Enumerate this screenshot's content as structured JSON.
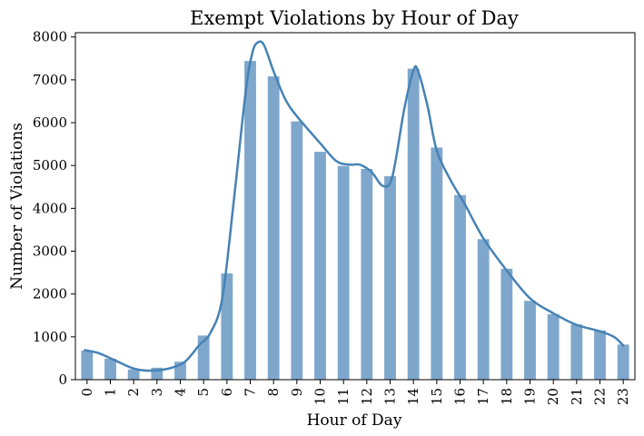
{
  "chart_data": {
    "type": "bar",
    "title": "Exempt Violations by Hour of Day",
    "xlabel": "Hour of Day",
    "ylabel": "Number of Violations",
    "categories": [
      "0",
      "1",
      "2",
      "3",
      "4",
      "5",
      "6",
      "7",
      "8",
      "9",
      "10",
      "11",
      "12",
      "13",
      "14",
      "15",
      "16",
      "17",
      "18",
      "19",
      "20",
      "21",
      "22",
      "23"
    ],
    "values": [
      680,
      490,
      240,
      280,
      420,
      1030,
      2480,
      7440,
      7080,
      6030,
      5320,
      4990,
      4920,
      4750,
      7260,
      5420,
      4310,
      3280,
      2590,
      1840,
      1530,
      1290,
      1150,
      820
    ],
    "ylim": [
      0,
      8100
    ],
    "yticks": [
      0,
      1000,
      2000,
      3000,
      4000,
      5000,
      6000,
      7000,
      8000
    ],
    "grid": false,
    "legend": "none",
    "overlay": {
      "type": "density-curve",
      "points": [
        {
          "x": -0.1,
          "y": 690
        },
        {
          "x": 0.5,
          "y": 620
        },
        {
          "x": 1.2,
          "y": 450
        },
        {
          "x": 2.0,
          "y": 260
        },
        {
          "x": 2.7,
          "y": 210
        },
        {
          "x": 3.5,
          "y": 260
        },
        {
          "x": 4.2,
          "y": 420
        },
        {
          "x": 4.8,
          "y": 800
        },
        {
          "x": 5.3,
          "y": 1100
        },
        {
          "x": 5.8,
          "y": 1900
        },
        {
          "x": 6.3,
          "y": 4200
        },
        {
          "x": 6.8,
          "y": 6700
        },
        {
          "x": 7.1,
          "y": 7650
        },
        {
          "x": 7.35,
          "y": 7880
        },
        {
          "x": 7.6,
          "y": 7800
        },
        {
          "x": 8.0,
          "y": 7200
        },
        {
          "x": 8.5,
          "y": 6550
        },
        {
          "x": 9.0,
          "y": 6150
        },
        {
          "x": 10.0,
          "y": 5520
        },
        {
          "x": 10.7,
          "y": 5100
        },
        {
          "x": 11.3,
          "y": 5020
        },
        {
          "x": 11.7,
          "y": 5020
        },
        {
          "x": 12.2,
          "y": 4850
        },
        {
          "x": 12.7,
          "y": 4520
        },
        {
          "x": 13.1,
          "y": 4750
        },
        {
          "x": 13.6,
          "y": 6300
        },
        {
          "x": 14.0,
          "y": 7220
        },
        {
          "x": 14.2,
          "y": 7200
        },
        {
          "x": 14.6,
          "y": 6400
        },
        {
          "x": 15.0,
          "y": 5350
        },
        {
          "x": 15.6,
          "y": 4650
        },
        {
          "x": 16.2,
          "y": 4100
        },
        {
          "x": 17.0,
          "y": 3300
        },
        {
          "x": 18.0,
          "y": 2550
        },
        {
          "x": 19.0,
          "y": 1900
        },
        {
          "x": 20.0,
          "y": 1550
        },
        {
          "x": 21.0,
          "y": 1280
        },
        {
          "x": 22.0,
          "y": 1130
        },
        {
          "x": 22.6,
          "y": 1000
        },
        {
          "x": 23.0,
          "y": 800
        }
      ]
    },
    "colors": {
      "bar": "#7fa7cc",
      "line": "#4682b4",
      "axis": "#000000",
      "background": "#ffffff"
    }
  }
}
